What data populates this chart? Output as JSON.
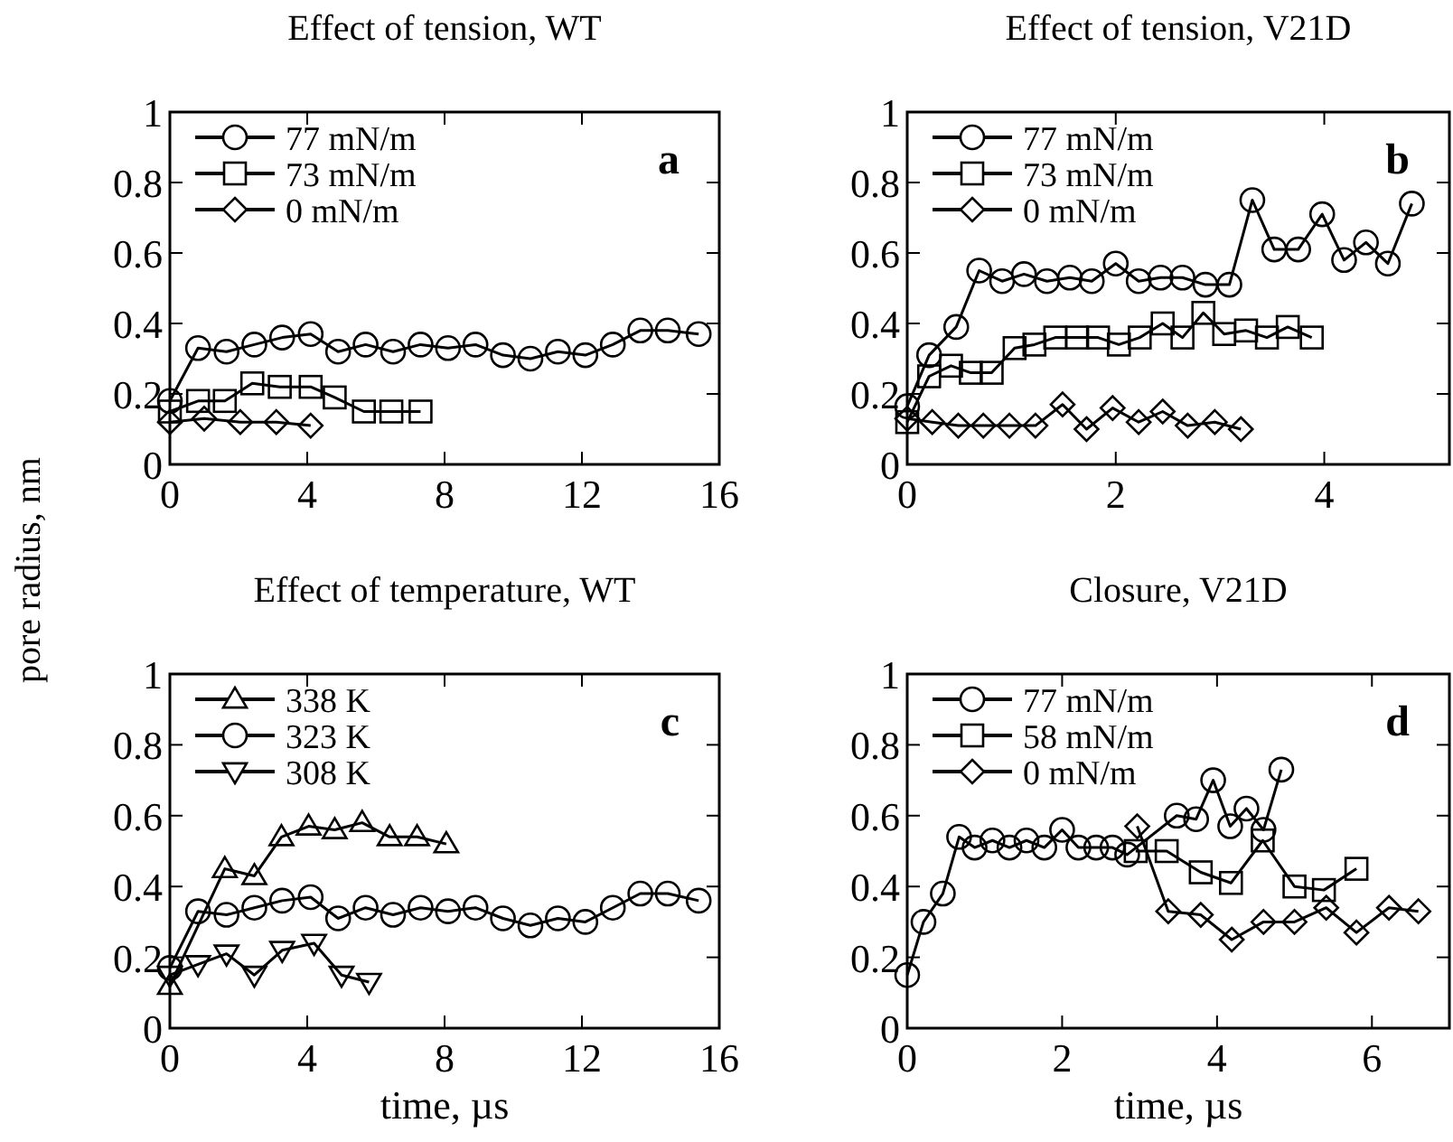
{
  "chart_data": [
    {
      "type": "line",
      "title": "Effect of tension, WT",
      "ylabel": "pore radius, nm",
      "annotations": [
        "a"
      ],
      "xlim": [
        0,
        16
      ],
      "xticks": [
        0,
        4,
        8,
        12,
        16
      ],
      "ylim": [
        0,
        1
      ],
      "yticks": [
        0,
        0.2,
        0.4,
        0.6,
        0.8,
        1
      ],
      "legend": "top left",
      "line_style": "solid",
      "grid": false,
      "series": [
        {
          "name": "77 mN/m",
          "color": "#000000",
          "marker": "circle",
          "x": [
            0,
            0.82,
            1.65,
            2.46,
            3.27,
            4.1,
            4.9,
            5.7,
            6.5,
            7.3,
            8.1,
            8.9,
            9.7,
            10.5,
            11.3,
            12.1,
            12.9,
            13.7,
            14.5,
            15.4
          ],
          "values": [
            0.18,
            0.33,
            0.32,
            0.34,
            0.36,
            0.37,
            0.32,
            0.34,
            0.32,
            0.34,
            0.33,
            0.34,
            0.31,
            0.3,
            0.32,
            0.31,
            0.34,
            0.38,
            0.38,
            0.37
          ]
        },
        {
          "name": "73 mN/m",
          "color": "#000000",
          "marker": "square",
          "x": [
            0,
            0.82,
            1.6,
            2.4,
            3.2,
            4.1,
            4.8,
            5.65,
            6.45,
            7.3
          ],
          "values": [
            0.15,
            0.18,
            0.18,
            0.23,
            0.22,
            0.22,
            0.19,
            0.15,
            0.15,
            0.15
          ]
        },
        {
          "name": "0 mN/m",
          "color": "#000000",
          "marker": "diamond",
          "x": [
            0,
            1,
            2.05,
            3.1,
            4.1
          ],
          "values": [
            0.12,
            0.13,
            0.12,
            0.12,
            0.11
          ]
        }
      ]
    },
    {
      "type": "line",
      "title": "Effect of tension, V21D",
      "annotations": [
        "b"
      ],
      "xlim": [
        0,
        5.2
      ],
      "xticks": [
        0,
        2,
        4
      ],
      "ylim": [
        0,
        1
      ],
      "yticks": [
        0,
        0.2,
        0.4,
        0.6,
        0.8,
        1
      ],
      "legend": "top left",
      "line_style": "solid",
      "grid": false,
      "series": [
        {
          "name": "77 mN/m",
          "color": "#000000",
          "marker": "circle",
          "x": [
            0,
            0.21,
            0.47,
            0.69,
            0.91,
            1.12,
            1.34,
            1.56,
            1.77,
            2,
            2.22,
            2.43,
            2.64,
            2.86,
            3.09,
            3.31,
            3.52,
            3.75,
            3.98,
            4.19,
            4.4,
            4.61,
            4.84
          ],
          "values": [
            0.165,
            0.31,
            0.39,
            0.55,
            0.52,
            0.54,
            0.52,
            0.53,
            0.52,
            0.57,
            0.52,
            0.53,
            0.53,
            0.51,
            0.51,
            0.75,
            0.61,
            0.61,
            0.71,
            0.58,
            0.63,
            0.57,
            0.74
          ]
        },
        {
          "name": "73 mN/m",
          "color": "#000000",
          "marker": "square",
          "x": [
            0,
            0.21,
            0.42,
            0.61,
            0.81,
            1.03,
            1.22,
            1.42,
            1.63,
            1.83,
            2.03,
            2.23,
            2.45,
            2.64,
            2.84,
            3.04,
            3.25,
            3.45,
            3.65,
            3.88
          ],
          "values": [
            0.12,
            0.25,
            0.28,
            0.26,
            0.26,
            0.33,
            0.34,
            0.36,
            0.36,
            0.36,
            0.34,
            0.36,
            0.4,
            0.36,
            0.43,
            0.37,
            0.38,
            0.36,
            0.39,
            0.36
          ]
        },
        {
          "name": "0 mN/m",
          "color": "#000000",
          "marker": "diamond",
          "x": [
            0,
            0.24,
            0.49,
            0.73,
            0.98,
            1.23,
            1.49,
            1.72,
            1.97,
            2.22,
            2.45,
            2.69,
            2.95,
            3.2
          ],
          "values": [
            0.13,
            0.12,
            0.11,
            0.11,
            0.11,
            0.11,
            0.17,
            0.1,
            0.16,
            0.12,
            0.15,
            0.11,
            0.12,
            0.1
          ]
        }
      ]
    },
    {
      "type": "line",
      "title": "Effect of temperature, WT",
      "xlabel": "time, µs",
      "annotations": [
        "c"
      ],
      "xlim": [
        0,
        16
      ],
      "xticks": [
        0,
        4,
        8,
        12,
        16
      ],
      "ylim": [
        0,
        1
      ],
      "yticks": [
        0,
        0.2,
        0.4,
        0.6,
        0.8,
        1
      ],
      "legend": "top left",
      "line_style": "solid",
      "grid": false,
      "series": [
        {
          "name": "338 K",
          "color": "#000000",
          "marker": "triangle",
          "x": [
            0,
            1.6,
            2.46,
            3.25,
            4.04,
            4.8,
            5.6,
            6.4,
            7.2,
            8.05
          ],
          "values": [
            0.12,
            0.45,
            0.43,
            0.54,
            0.57,
            0.56,
            0.58,
            0.54,
            0.54,
            0.52
          ]
        },
        {
          "name": "323 K",
          "color": "#000000",
          "marker": "circle",
          "x": [
            0,
            0.82,
            1.65,
            2.46,
            3.27,
            4.1,
            4.9,
            5.7,
            6.5,
            7.3,
            8.1,
            8.9,
            9.7,
            10.5,
            11.3,
            12.1,
            12.9,
            13.7,
            14.5,
            15.4
          ],
          "values": [
            0.17,
            0.33,
            0.32,
            0.34,
            0.36,
            0.37,
            0.31,
            0.34,
            0.32,
            0.34,
            0.33,
            0.34,
            0.31,
            0.29,
            0.31,
            0.3,
            0.34,
            0.38,
            0.38,
            0.36
          ]
        },
        {
          "name": "308 K",
          "color": "#000000",
          "marker": "triangle-down",
          "x": [
            0,
            0.82,
            1.65,
            2.46,
            3.27,
            4.2,
            5,
            5.8
          ],
          "values": [
            0.15,
            0.18,
            0.21,
            0.15,
            0.22,
            0.24,
            0.15,
            0.13
          ]
        }
      ]
    },
    {
      "type": "line",
      "title": "Closure, V21D",
      "xlabel": "time, µs",
      "annotations": [
        "d"
      ],
      "xlim": [
        0,
        7
      ],
      "xticks": [
        0,
        2,
        4,
        6
      ],
      "ylim": [
        0,
        1
      ],
      "yticks": [
        0,
        0.2,
        0.4,
        0.6,
        0.8,
        1
      ],
      "legend": "top left",
      "line_style": "solid",
      "grid": false,
      "series": [
        {
          "name": "77 mN/m",
          "color": "#000000",
          "marker": "circle",
          "x": [
            0,
            0.21,
            0.46,
            0.67,
            0.87,
            1.1,
            1.32,
            1.54,
            1.77,
            2,
            2.21,
            2.44,
            2.65,
            2.84,
            3.48,
            3.73,
            3.95,
            4.17,
            4.38,
            4.6,
            4.83
          ],
          "values": [
            0.15,
            0.3,
            0.38,
            0.54,
            0.51,
            0.53,
            0.51,
            0.53,
            0.51,
            0.56,
            0.51,
            0.51,
            0.51,
            0.49,
            0.6,
            0.59,
            0.7,
            0.57,
            0.62,
            0.56,
            0.73
          ]
        },
        {
          "name": "58 mN/m",
          "color": "#000000",
          "marker": "square",
          "x": [
            2.95,
            3.35,
            3.79,
            4.18,
            4.59,
            5,
            5.38,
            5.8
          ],
          "values": [
            0.5,
            0.5,
            0.44,
            0.41,
            0.53,
            0.4,
            0.39,
            0.45
          ]
        },
        {
          "name": "0 mN/m",
          "color": "#000000",
          "marker": "diamond",
          "x": [
            2.97,
            3.37,
            3.79,
            4.19,
            4.6,
            5,
            5.41,
            5.8,
            6.22,
            6.6
          ],
          "values": [
            0.57,
            0.33,
            0.32,
            0.25,
            0.3,
            0.3,
            0.34,
            0.27,
            0.34,
            0.33
          ]
        }
      ]
    }
  ]
}
